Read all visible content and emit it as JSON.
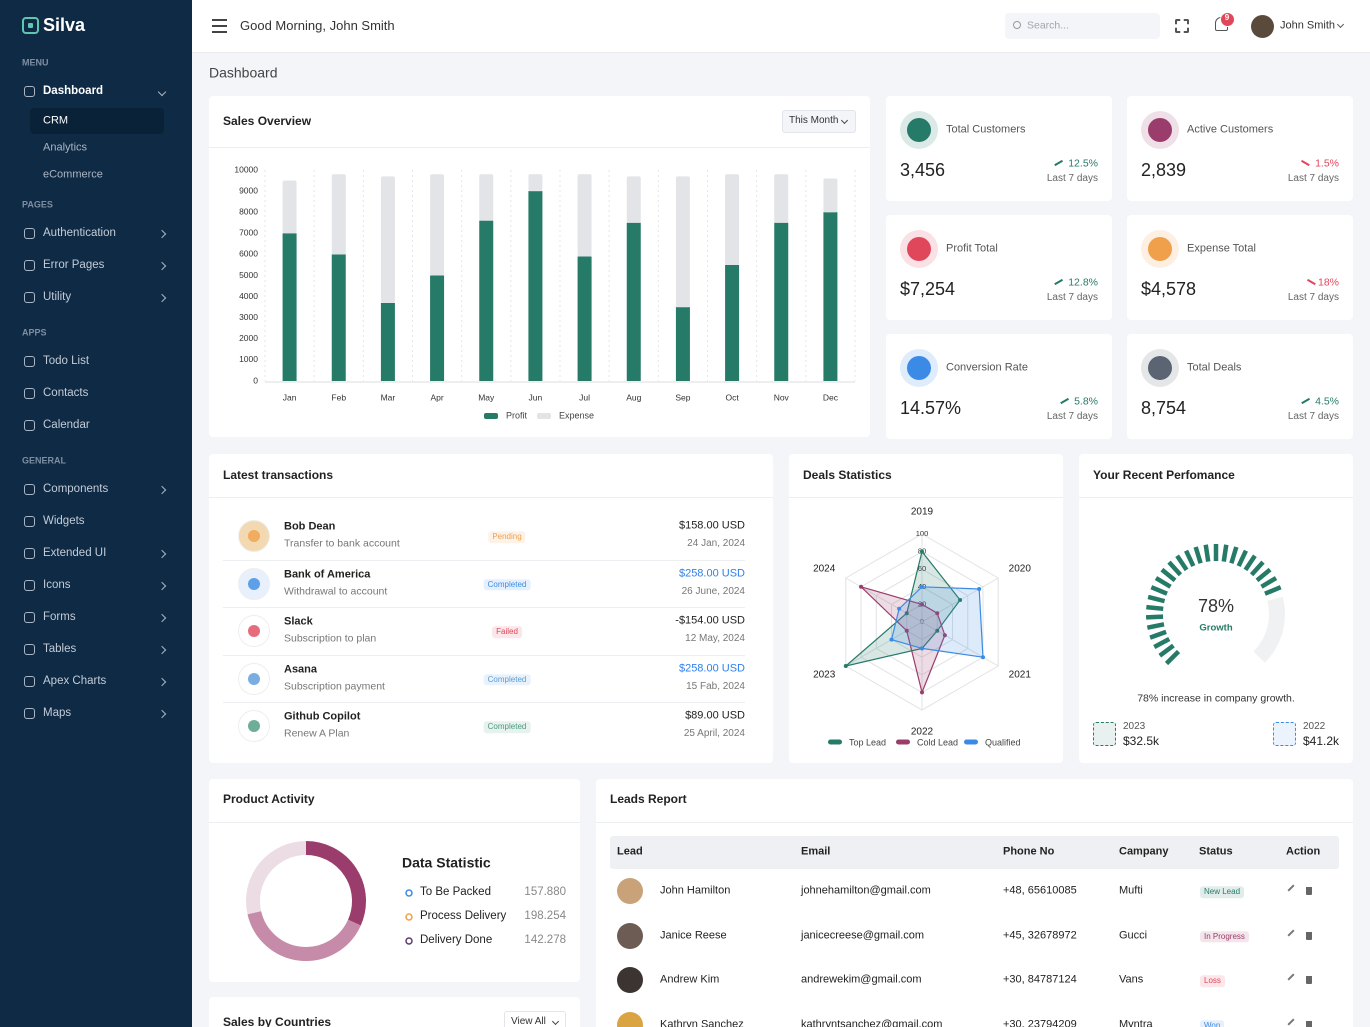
{
  "sidebar": {
    "brand": "Silva",
    "sections": [
      {
        "title": "MENU",
        "items": [
          {
            "label": "Dashboard",
            "arrow": true,
            "children": [
              "CRM",
              "Analytics",
              "eCommerce"
            ],
            "active_child": 0
          }
        ]
      },
      {
        "title": "PAGES",
        "items": [
          {
            "label": "Authentication",
            "arrow": true
          },
          {
            "label": "Error Pages",
            "arrow": true
          },
          {
            "label": "Utility",
            "arrow": true
          }
        ]
      },
      {
        "title": "APPS",
        "items": [
          {
            "label": "Todo List"
          },
          {
            "label": "Contacts"
          },
          {
            "label": "Calendar"
          }
        ]
      },
      {
        "title": "GENERAL",
        "items": [
          {
            "label": "Components",
            "arrow": true
          },
          {
            "label": "Widgets"
          },
          {
            "label": "Extended UI",
            "arrow": true
          },
          {
            "label": "Icons",
            "arrow": true
          },
          {
            "label": "Forms",
            "arrow": true
          },
          {
            "label": "Tables",
            "arrow": true
          },
          {
            "label": "Apex Charts",
            "arrow": true
          },
          {
            "label": "Maps",
            "arrow": true
          }
        ]
      }
    ]
  },
  "header": {
    "greeting": "Good Morning, John Smith",
    "search_placeholder": "Search...",
    "notifications": 9,
    "user": "John Smith"
  },
  "page_title": "Dashboard",
  "sales_overview": {
    "title": "Sales Overview",
    "filter": "This Month",
    "chart": {
      "type": "bar",
      "stacked": true,
      "categories": [
        "Jan",
        "Feb",
        "Mar",
        "Apr",
        "May",
        "Jun",
        "Jul",
        "Aug",
        "Sep",
        "Oct",
        "Nov",
        "Dec"
      ],
      "series": [
        {
          "name": "Profit",
          "color": "#267a68",
          "values": [
            7000,
            6000,
            3700,
            5000,
            7600,
            9000,
            5900,
            7500,
            3500,
            5500,
            7500,
            8000
          ]
        },
        {
          "name": "Expense",
          "color": "#e2e4e8",
          "values": [
            2500,
            3800,
            6000,
            4800,
            2200,
            800,
            3900,
            2200,
            6200,
            4300,
            2300,
            1600
          ]
        }
      ],
      "ylim": [
        0,
        10000
      ],
      "yticks": [
        0,
        1000,
        2000,
        3000,
        4000,
        5000,
        6000,
        7000,
        8000,
        9000,
        10000
      ],
      "grid": true
    }
  },
  "stats": [
    {
      "label": "Total Customers",
      "value": "3,456",
      "change": "12.5%",
      "trend": "up",
      "period": "Last 7 days",
      "color": "#267a68"
    },
    {
      "label": "Active Customers",
      "value": "2,839",
      "change": "1.5%",
      "trend": "down",
      "period": "Last 7 days",
      "color": "#9b3d6c"
    },
    {
      "label": "Profit Total",
      "value": "$7,254",
      "change": "12.8%",
      "trend": "up",
      "period": "Last 7 days",
      "color": "#e0475b"
    },
    {
      "label": "Expense Total",
      "value": "$4,578",
      "change": "18%",
      "trend": "down",
      "period": "Last 7 days",
      "color": "#f0a04b"
    },
    {
      "label": "Conversion Rate",
      "value": "14.57%",
      "change": "5.8%",
      "trend": "up",
      "period": "Last 7 days",
      "color": "#3b8be6"
    },
    {
      "label": "Total Deals",
      "value": "8,754",
      "change": "4.5%",
      "trend": "up",
      "period": "Last 7 days",
      "color": "#5b6472"
    }
  ],
  "transactions": {
    "title": "Latest transactions",
    "rows": [
      {
        "name": "Bob Dean",
        "desc": "Transfer to bank account",
        "status": "Pending",
        "status_color": "#f0a04b",
        "amount": "$158.00 USD",
        "amount_color": "#222",
        "date": "24 Jan, 2024"
      },
      {
        "name": "Bank of America",
        "desc": "Withdrawal to account",
        "status": "Completed",
        "status_color": "#3b8be6",
        "amount": "$258.00 USD",
        "amount_color": "#2f80ed",
        "date": "26 June, 2024"
      },
      {
        "name": "Slack",
        "desc": "Subscription to plan",
        "status": "Failed",
        "status_color": "#e0475b",
        "amount": "-$154.00 USD",
        "amount_color": "#222",
        "date": "12 May, 2024"
      },
      {
        "name": "Asana",
        "desc": "Subscription payment",
        "status": "Completed",
        "status_color": "#5a9ad8",
        "amount": "$258.00 USD",
        "amount_color": "#2f80ed",
        "date": "15 Fab, 2024"
      },
      {
        "name": "Github Copilot",
        "desc": "Renew A Plan",
        "status": "Completed",
        "status_color": "#4a9a7c",
        "amount": "$89.00 USD",
        "amount_color": "#222",
        "date": "25 April, 2024"
      }
    ]
  },
  "deals": {
    "title": "Deals Statistics",
    "chart": {
      "type": "radar",
      "categories": [
        "2019",
        "2020",
        "2021",
        "2022",
        "2023",
        "2024"
      ],
      "series": [
        {
          "name": "Top Lead",
          "color": "#267a68",
          "values": [
            80,
            50,
            20,
            30,
            100,
            20
          ]
        },
        {
          "name": "Cold Lead",
          "color": "#9b3d6c",
          "values": [
            20,
            20,
            30,
            80,
            20,
            80
          ]
        },
        {
          "name": "Qualified",
          "color": "#3b8be6",
          "values": [
            40,
            75,
            80,
            30,
            40,
            30
          ]
        }
      ],
      "ylim": [
        0,
        100
      ],
      "yticks": [
        0,
        20,
        40,
        60,
        80,
        100
      ]
    }
  },
  "performance": {
    "title": "Your Recent Perfomance",
    "chart": {
      "type": "gauge",
      "values": [
        78
      ],
      "value_labels": [
        "78%"
      ],
      "ylim": [
        0,
        100
      ],
      "color": "#267a68"
    },
    "label": "Growth",
    "caption": "78% increase in company growth.",
    "years": [
      {
        "year": "2023",
        "value": "$32.5k",
        "color": "#267a68"
      },
      {
        "year": "2022",
        "value": "$41.2k",
        "color": "#3b8be6"
      }
    ]
  },
  "product_activity": {
    "title": "Product Activity",
    "heading": "Data Statistic",
    "chart": {
      "type": "pie",
      "donut": true,
      "categories": [
        "To Be Packed",
        "Process Delivery",
        "Delivery Done"
      ],
      "values": [
        157880,
        198254,
        142278
      ],
      "value_labels": [
        "157.880",
        "198.254",
        "142.278"
      ],
      "colors": [
        "#9b3d6c",
        "#c58ba8",
        "#ecdde5"
      ],
      "marker_colors": [
        "#3b8be6",
        "#f0a04b",
        "#5a3d6c"
      ]
    }
  },
  "countries": {
    "title": "Sales by Countries",
    "button": "View All"
  },
  "leads": {
    "title": "Leads Report",
    "columns": [
      "Lead",
      "Email",
      "Phone No",
      "Campany",
      "Status",
      "Action"
    ],
    "rows": [
      {
        "name": "John Hamilton",
        "email": "johnehamilton@gmail.com",
        "phone": "+48, 65610085",
        "company": "Mufti",
        "status": "New Lead",
        "status_color": "#267a68"
      },
      {
        "name": "Janice Reese",
        "email": "janicecreese@gmail.com",
        "phone": "+45, 32678972",
        "company": "Gucci",
        "status": "In Progress",
        "status_color": "#9b3d6c"
      },
      {
        "name": "Andrew Kim",
        "email": "andrewekim@gmail.com",
        "phone": "+30, 84787124",
        "company": "Vans",
        "status": "Loss",
        "status_color": "#e0475b"
      },
      {
        "name": "Kathryn Sanchez",
        "email": "kathryntsanchez@gmail.com",
        "phone": "+30, 23794209",
        "company": "Myntra",
        "status": "Won",
        "status_color": "#3b8be6"
      }
    ]
  }
}
